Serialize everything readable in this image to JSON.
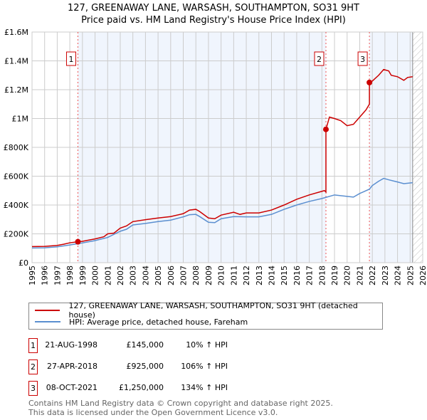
{
  "chart_data": {
    "type": "line",
    "title": "127, GREENAWAY LANE, WARSASH, SOUTHAMPTON, SO31 9HT",
    "subtitle": "Price paid vs. HM Land Registry's House Price Index (HPI)",
    "xlim": [
      1995,
      2026
    ],
    "ylim": [
      0,
      1600000
    ],
    "x_ticks": [
      1995,
      1996,
      1997,
      1998,
      1999,
      2000,
      2001,
      2002,
      2003,
      2004,
      2005,
      2006,
      2007,
      2008,
      2009,
      2010,
      2011,
      2012,
      2013,
      2014,
      2015,
      2016,
      2017,
      2018,
      2019,
      2020,
      2021,
      2022,
      2023,
      2024,
      2025,
      2026
    ],
    "y_ticks": [
      {
        "v": 0,
        "label": "£0"
      },
      {
        "v": 200000,
        "label": "£200K"
      },
      {
        "v": 400000,
        "label": "£400K"
      },
      {
        "v": 600000,
        "label": "£600K"
      },
      {
        "v": 800000,
        "label": "£800K"
      },
      {
        "v": 1000000,
        "label": "£1M"
      },
      {
        "v": 1200000,
        "label": "£1.2M"
      },
      {
        "v": 1400000,
        "label": "£1.4M"
      },
      {
        "v": 1600000,
        "label": "£1.6M"
      }
    ],
    "grid": true,
    "forecast_from": 2025.2,
    "series": [
      {
        "name": "127, GREENAWAY LANE, WARSASH, SOUTHAMPTON, SO31 9HT (detached house)",
        "color": "#cc0000",
        "x": [
          1995,
          1996,
          1997,
          1997.5,
          1998,
          1998.64,
          1999,
          2000,
          2000.7,
          2001,
          2001.5,
          2002,
          2002.5,
          2003,
          2004,
          2005,
          2006,
          2007,
          2007.5,
          2008,
          2008.3,
          2009,
          2009.5,
          2010,
          2011,
          2011.5,
          2012,
          2013,
          2014,
          2015,
          2016,
          2017,
          2018.2,
          2018.32,
          2018.32,
          2018.6,
          2019,
          2019.5,
          2020,
          2020.5,
          2021,
          2021.5,
          2021.77,
          2021.77,
          2022,
          2022.5,
          2022.9,
          2023.3,
          2023.5,
          2024,
          2024.5,
          2024.8,
          2025.2
        ],
        "y": [
          112000,
          113000,
          120000,
          128000,
          138000,
          145000,
          148000,
          165000,
          180000,
          200000,
          205000,
          240000,
          255000,
          285000,
          298000,
          310000,
          320000,
          340000,
          365000,
          370000,
          355000,
          310000,
          305000,
          330000,
          350000,
          335000,
          345000,
          345000,
          365000,
          400000,
          440000,
          470000,
          500000,
          490000,
          925000,
          1010000,
          1000000,
          985000,
          950000,
          960000,
          1010000,
          1060000,
          1100000,
          1250000,
          1260000,
          1300000,
          1340000,
          1330000,
          1300000,
          1290000,
          1265000,
          1285000,
          1290000
        ]
      },
      {
        "name": "HPI: Average price, detached house, Fareham",
        "color": "#5b8fd0",
        "x": [
          1995,
          1996,
          1997,
          1998,
          1998.64,
          1999,
          2000,
          2001,
          2002,
          2002.5,
          2003,
          2004,
          2005,
          2006,
          2007,
          2007.5,
          2008,
          2008.3,
          2009,
          2009.5,
          2010,
          2011,
          2012,
          2013,
          2014,
          2015,
          2016,
          2017,
          2018,
          2018.32,
          2019,
          2020,
          2020.5,
          2021,
          2021.77,
          2022,
          2022.5,
          2022.9,
          2023.3,
          2024,
          2024.5,
          2025.2
        ],
        "y": [
          102000,
          103000,
          110000,
          123000,
          132000,
          137000,
          153000,
          175000,
          218000,
          232000,
          262000,
          272000,
          285000,
          295000,
          318000,
          333000,
          335000,
          320000,
          280000,
          278000,
          305000,
          320000,
          318000,
          318000,
          335000,
          370000,
          400000,
          425000,
          445000,
          453000,
          470000,
          460000,
          455000,
          480000,
          510000,
          535000,
          565000,
          585000,
          575000,
          560000,
          548000,
          555000
        ]
      }
    ],
    "sales": [
      {
        "label": "1",
        "x": 1998.64,
        "y": 145000,
        "date": "21-AUG-1998",
        "price": "£145,000",
        "hpi": "10% ↑ HPI"
      },
      {
        "label": "2",
        "x": 2018.32,
        "y": 925000,
        "date": "27-APR-2018",
        "price": "£925,000",
        "hpi": "106% ↑ HPI"
      },
      {
        "label": "3",
        "x": 2021.77,
        "y": 1250000,
        "date": "08-OCT-2021",
        "price": "£1,250,000",
        "hpi": "134% ↑ HPI"
      }
    ]
  },
  "footer": {
    "line1": "Contains HM Land Registry data © Crown copyright and database right 2025.",
    "line2": "This data is licensed under the Open Government Licence v3.0."
  }
}
